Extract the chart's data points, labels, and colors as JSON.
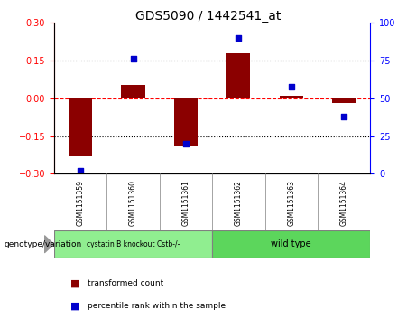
{
  "title": "GDS5090 / 1442541_at",
  "samples": [
    "GSM1151359",
    "GSM1151360",
    "GSM1151361",
    "GSM1151362",
    "GSM1151363",
    "GSM1151364"
  ],
  "bar_values": [
    -0.23,
    0.055,
    -0.19,
    0.18,
    0.01,
    -0.02
  ],
  "percentile_values": [
    2,
    76,
    20,
    90,
    58,
    38
  ],
  "bar_color": "#8B0000",
  "dot_color": "#0000CD",
  "ylim_left": [
    -0.3,
    0.3
  ],
  "ylim_right": [
    0,
    100
  ],
  "yticks_left": [
    -0.3,
    -0.15,
    0,
    0.15,
    0.3
  ],
  "yticks_right": [
    0,
    25,
    50,
    75,
    100
  ],
  "hline_dotted": [
    0.15,
    -0.15
  ],
  "group1_label": "cystatin B knockout Cstb-/-",
  "group2_label": "wild type",
  "group1_color": "#90EE90",
  "group2_color": "#5CD65C",
  "group1_indices": [
    0,
    1,
    2
  ],
  "group2_indices": [
    3,
    4,
    5
  ],
  "genotype_label": "genotype/variation",
  "legend_bar_label": "transformed count",
  "legend_dot_label": "percentile rank within the sample",
  "bar_width": 0.45,
  "figsize": [
    4.61,
    3.63
  ],
  "dpi": 100
}
